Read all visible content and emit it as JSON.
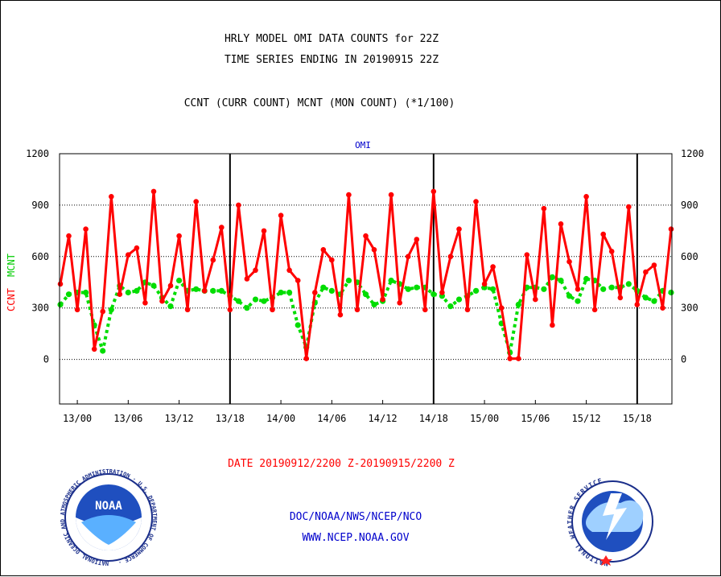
{
  "titles": {
    "line1": "HRLY MODEL OMI DATA COUNTS for 22Z",
    "line2": "TIME SERIES ENDING IN 20190915 22Z",
    "line3": "CCNT (CURR COUNT) MCNT (MON COUNT) (*1/100)"
  },
  "footer": {
    "date_range": "DATE 20190912/2200 Z-20190915/2200 Z",
    "org": "DOC/NOAA/NWS/NCEP/NCO",
    "url": "WWW.NCEP.NOAA.GOV"
  },
  "logos": {
    "noaa_text": "NOAA",
    "noaa_ring": "NATIONAL OCEANIC AND ATMOSPHERIC ADMINISTRATION · U.S. DEPARTMENT OF COMMERCE ·",
    "nws_ring": "NATIONAL WEATHER SERVICE"
  },
  "colors": {
    "ccnt": "#ff0000",
    "mcnt": "#00dd00",
    "text_blue": "#0000cc",
    "grid": "#000000"
  },
  "chart_data": {
    "type": "line",
    "title": "OMI",
    "ylabel_left": [
      "CCNT",
      "MCNT"
    ],
    "ylim": [
      -260,
      1200
    ],
    "yticks": [
      0,
      300,
      600,
      900,
      1200
    ],
    "x_start": "2019-09-12 22:00",
    "x_end": "2019-09-15 22:00",
    "xtick_labels": [
      "13/00",
      "13/06",
      "13/12",
      "13/18",
      "14/00",
      "14/06",
      "14/12",
      "14/18",
      "15/00",
      "15/06",
      "15/12",
      "15/18"
    ],
    "day_boundaries": [
      "13/18",
      "14/18",
      "15/18"
    ],
    "series": [
      {
        "name": "CCNT",
        "values": [
          440,
          720,
          290,
          760,
          60,
          280,
          950,
          380,
          610,
          650,
          330,
          980,
          340,
          430,
          720,
          290,
          920,
          400,
          580,
          770,
          290,
          900,
          470,
          520,
          750,
          290,
          840,
          520,
          460,
          5,
          390,
          640,
          580,
          260,
          960,
          290,
          720,
          640,
          350,
          960,
          330,
          600,
          700,
          290,
          980,
          390,
          600,
          760,
          290,
          920,
          440,
          540,
          300,
          5,
          5,
          610,
          350,
          880,
          200,
          790,
          570,
          410,
          950,
          290,
          730,
          630,
          360,
          890,
          320,
          510,
          550,
          300,
          760
        ]
      },
      {
        "name": "MCNT",
        "values": [
          320,
          380,
          390,
          390,
          200,
          50,
          290,
          430,
          390,
          400,
          450,
          430,
          360,
          310,
          460,
          400,
          410,
          400,
          400,
          400,
          370,
          340,
          300,
          350,
          340,
          360,
          390,
          390,
          200,
          70,
          330,
          420,
          400,
          380,
          460,
          450,
          380,
          320,
          340,
          460,
          440,
          410,
          420,
          420,
          380,
          370,
          310,
          350,
          370,
          400,
          420,
          410,
          210,
          40,
          320,
          420,
          420,
          410,
          480,
          460,
          370,
          340,
          470,
          460,
          410,
          420,
          420,
          440,
          400,
          360,
          340,
          400,
          390
        ]
      }
    ]
  }
}
